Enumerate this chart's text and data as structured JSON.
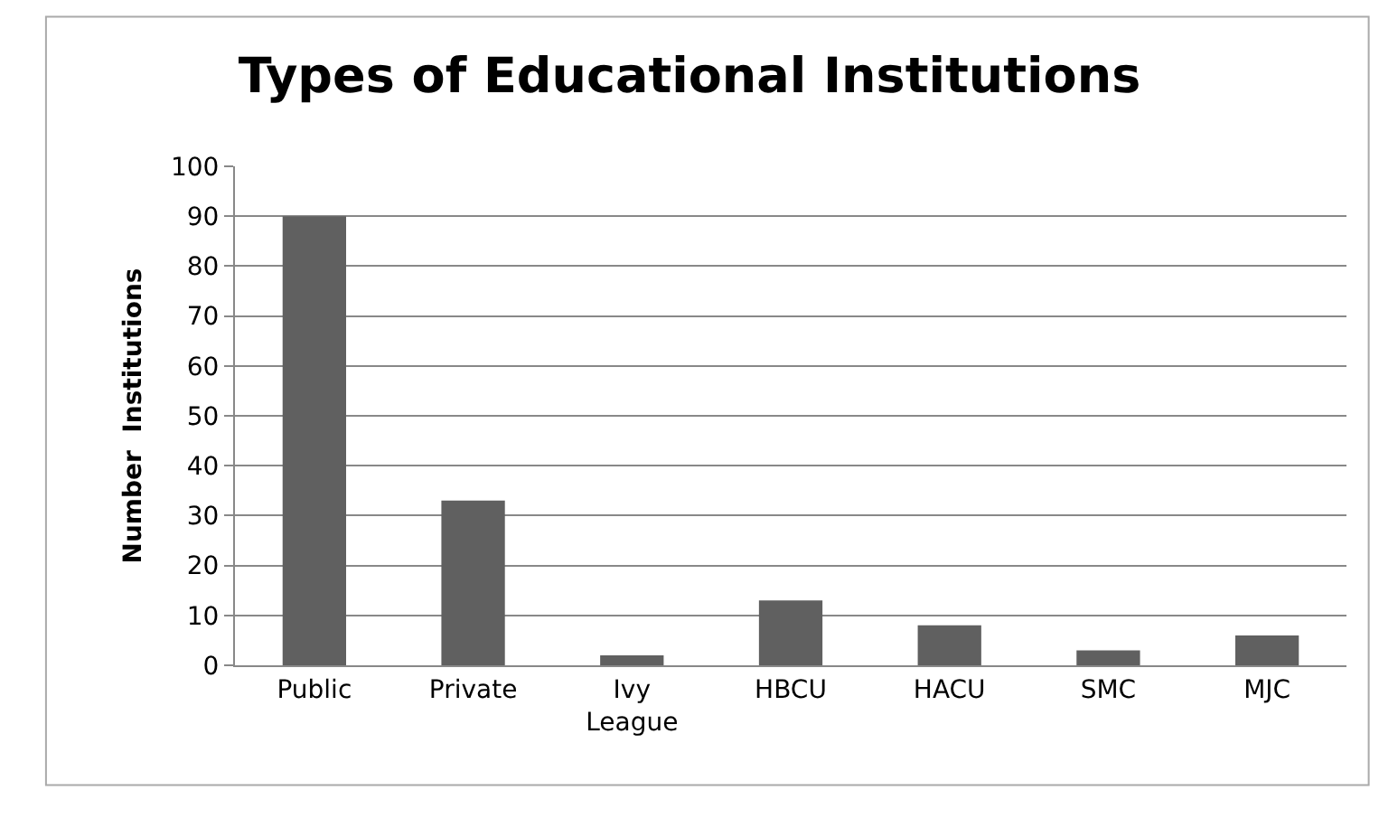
{
  "chart_data": {
    "type": "bar",
    "title": "Types of Educational Institutions",
    "ylabel": "Number  Institutions",
    "categories": [
      "Public",
      "Private",
      "Ivy League",
      "HBCU",
      "HACU",
      "SMC",
      "MJC"
    ],
    "values": [
      90,
      33,
      2,
      13,
      8,
      3,
      6
    ],
    "color": "#606060",
    "ylim": [
      0,
      100
    ],
    "yticks": [
      0,
      10,
      20,
      30,
      40,
      50,
      60,
      70,
      80,
      90,
      100
    ],
    "grid": "y",
    "legend": false
  }
}
